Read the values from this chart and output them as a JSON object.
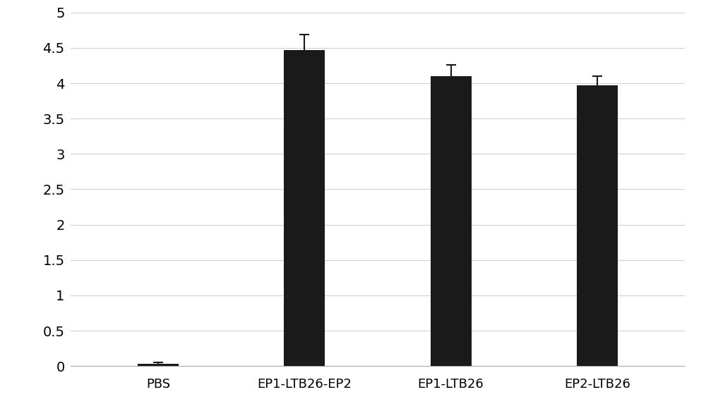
{
  "categories": [
    "PBS",
    "EP1-LTB26-EP2",
    "EP1-LTB26",
    "EP2-LTB26"
  ],
  "values": [
    0.03,
    4.47,
    4.1,
    3.97
  ],
  "errors": [
    0.02,
    0.22,
    0.16,
    0.13
  ],
  "bar_color": "#1a1a1a",
  "bar_width": 0.28,
  "ylim": [
    0,
    5
  ],
  "yticks": [
    0,
    0.5,
    1.0,
    1.5,
    2.0,
    2.5,
    3.0,
    3.5,
    4.0,
    4.5,
    5.0
  ],
  "background_color": "#ffffff",
  "grid_color": "#d0d0d0",
  "error_cap_size": 5,
  "error_color": "#1a1a1a",
  "tick_fontsize": 14,
  "xlabel_fontsize": 13
}
